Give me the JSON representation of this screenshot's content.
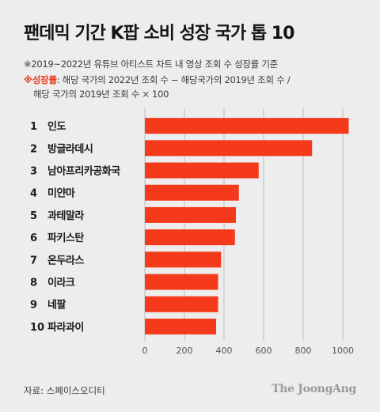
{
  "title": "팬데믹 기간 K팝 소비 성장 국가 톱 10",
  "notes": {
    "line1": "※2019~2022년 유튜브 아티스트 차트 내 영상 조회 수 성장률 기준",
    "line2_label": "※성장률",
    "line2_text": ": 해당 국가의 2022년 조회 수 − 해당국가의 2019년 조회 수 /",
    "line3": "해당 국가의 2019년 조회 수 × 100"
  },
  "source": "자료: 스페이스오디티",
  "logo": "The JoongAng",
  "colors": {
    "bar": "#f5391b",
    "highlight": "#e8391e",
    "axis": "#bdbdbd"
  },
  "chart_data": {
    "type": "bar",
    "orientation": "horizontal",
    "ranks": [
      "1",
      "2",
      "3",
      "4",
      "5",
      "6",
      "7",
      "8",
      "9",
      "10"
    ],
    "categories": [
      "인도",
      "방글라데시",
      "남아프리카공화국",
      "미얀마",
      "과테말라",
      "파키스탄",
      "온두라스",
      "이라크",
      "네팔",
      "파라과이"
    ],
    "values": [
      1030,
      845,
      575,
      475,
      460,
      455,
      385,
      370,
      370,
      360
    ],
    "xlim": [
      0,
      1000
    ],
    "xticks": [
      0,
      200,
      400,
      600,
      800,
      1000
    ],
    "xlabel": "",
    "ylabel": "",
    "grid": true
  }
}
